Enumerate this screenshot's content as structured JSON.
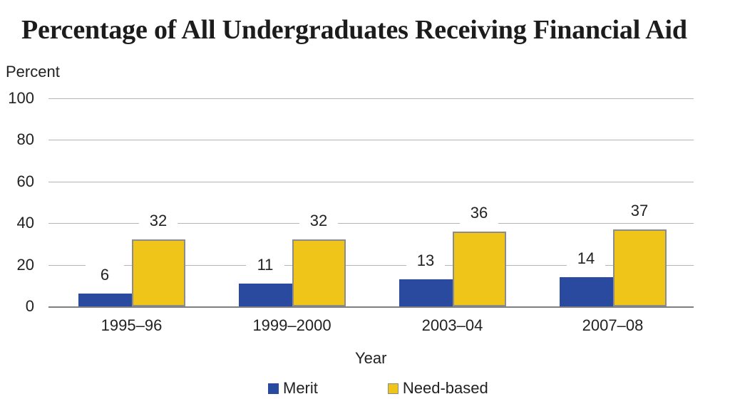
{
  "title": "Percentage of All Undergraduates Receiving Financial Aid",
  "chart_data": {
    "type": "bar",
    "categories": [
      "1995–96",
      "1999–2000",
      "2003–04",
      "2007–08"
    ],
    "series": [
      {
        "name": "Merit",
        "color": "#2a4aa0",
        "values": [
          6,
          11,
          13,
          14
        ]
      },
      {
        "name": "Need-based",
        "color": "#f0c51a",
        "border_color": "#8c8c8c",
        "values": [
          32,
          32,
          36,
          37
        ]
      }
    ],
    "title": "Percentage of All Undergraduates Receiving Financial Aid",
    "xlabel": "Year",
    "ylabel": "Percent",
    "yticks": [
      0,
      20,
      40,
      60,
      80,
      100
    ],
    "ylim": [
      0,
      100
    ],
    "grid": true,
    "legend_position": "bottom",
    "bar_value_labels": true
  },
  "colors": {
    "grid": "#b5b5b5",
    "axis": "#7f7f7f",
    "text": "#222222"
  }
}
